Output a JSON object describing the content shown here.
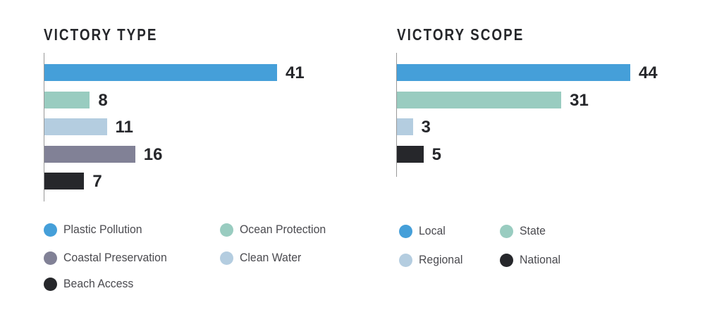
{
  "chart_data": [
    {
      "type": "bar",
      "orientation": "horizontal",
      "title": "VICTORY TYPE",
      "categories": [
        "Plastic Pollution",
        "Ocean Protection",
        "Clean Water",
        "Coastal Preservation",
        "Beach Access"
      ],
      "values": [
        41,
        8,
        11,
        16,
        7
      ],
      "colors": [
        "#459fd9",
        "#99ccc0",
        "#b4cde0",
        "#818196",
        "#26272b"
      ],
      "legend": [
        {
          "label": "Plastic Pollution",
          "color": "#459fd9"
        },
        {
          "label": "Ocean Protection",
          "color": "#99ccc0"
        },
        {
          "label": "Coastal Preservation",
          "color": "#818196"
        },
        {
          "label": "Clean Water",
          "color": "#b4cde0"
        },
        {
          "label": "Beach Access",
          "color": "#26272b"
        }
      ],
      "legend_placement": "bottom",
      "grid": false
    },
    {
      "type": "bar",
      "orientation": "horizontal",
      "title": "VICTORY SCOPE",
      "categories": [
        "Local",
        "State",
        "Regional",
        "National"
      ],
      "values": [
        44,
        31,
        3,
        5
      ],
      "colors": [
        "#459fd9",
        "#99ccc0",
        "#b4cde0",
        "#26272b"
      ],
      "legend": [
        {
          "label": "Local",
          "color": "#459fd9"
        },
        {
          "label": "State",
          "color": "#99ccc0"
        },
        {
          "label": "Regional",
          "color": "#b4cde0"
        },
        {
          "label": "National",
          "color": "#26272b"
        }
      ],
      "legend_placement": "bottom",
      "grid": false
    }
  ]
}
